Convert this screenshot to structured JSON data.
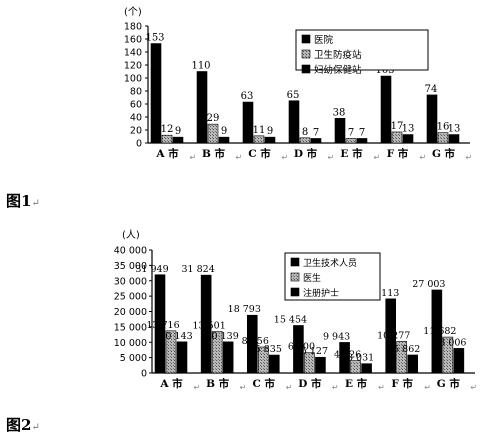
{
  "figure1_label": "图1",
  "figure2_label": "图2",
  "return_mark": "↵",
  "chart_data": [
    {
      "type": "bar",
      "ylabel": "(个)",
      "ylim": [
        0,
        180
      ],
      "yticks": [
        0,
        20,
        40,
        60,
        80,
        100,
        120,
        140,
        160,
        180
      ],
      "categories": [
        "A 市",
        "B 市",
        "C 市",
        "D 市",
        "E 市",
        "F 市",
        "G 市"
      ],
      "series": [
        {
          "name": "医院",
          "values": [
            153,
            110,
            63,
            65,
            38,
            103,
            74
          ],
          "labels": [
            "153",
            "110",
            "63",
            "65",
            "38",
            "103",
            "74"
          ],
          "fill": "#000000"
        },
        {
          "name": "卫生防疫站",
          "values": [
            12,
            29,
            11,
            8,
            7,
            17,
            16
          ],
          "labels": [
            "12",
            "29",
            "11",
            "8",
            "7",
            "17",
            "16"
          ],
          "fill": "#a0a0a0"
        },
        {
          "name": "妇幼保健站",
          "values": [
            9,
            9,
            9,
            7,
            7,
            13,
            13
          ],
          "labels": [
            "9",
            "9",
            "9",
            "7",
            "7",
            "13",
            "13"
          ],
          "fill": "#000000"
        }
      ],
      "legend_position": "top-right",
      "grid": false
    },
    {
      "type": "bar",
      "ylabel": "(人)",
      "ylim": [
        0,
        40000
      ],
      "yticks": [
        0,
        5000,
        10000,
        15000,
        20000,
        25000,
        30000,
        35000,
        40000
      ],
      "ytick_labels": [
        "0",
        "5 000",
        "10 000",
        "15 000",
        "20 000",
        "25 000",
        "30 000",
        "35 000",
        "40 000"
      ],
      "categories": [
        "A 市",
        "B 市",
        "C 市",
        "D 市",
        "E 市",
        "F 市",
        "G 市"
      ],
      "series": [
        {
          "name": "卫生技术人员",
          "values": [
            31949,
            31824,
            18793,
            15454,
            9943,
            24113,
            27003
          ],
          "labels": [
            "31 949",
            "31 824",
            "18 793",
            "15 454",
            "9 943",
            "24 113",
            "27 003"
          ],
          "fill": "#000000"
        },
        {
          "name": "医生",
          "values": [
            13716,
            13501,
            8456,
            6600,
            4026,
            10277,
            11682
          ],
          "labels": [
            "13 716",
            "13 501",
            "8 456",
            "6 600",
            "4 026",
            "10 277",
            "11 682"
          ],
          "fill": "#a0a0a0"
        },
        {
          "name": "注册护士",
          "values": [
            10143,
            10139,
            5835,
            5127,
            3031,
            5862,
            8006
          ],
          "labels": [
            "10 143",
            "10 139",
            "5 835",
            "5 127",
            "3 031",
            "5 862",
            "8 006"
          ],
          "fill": "#000000"
        }
      ],
      "legend_position": "top-right",
      "grid": false
    }
  ]
}
